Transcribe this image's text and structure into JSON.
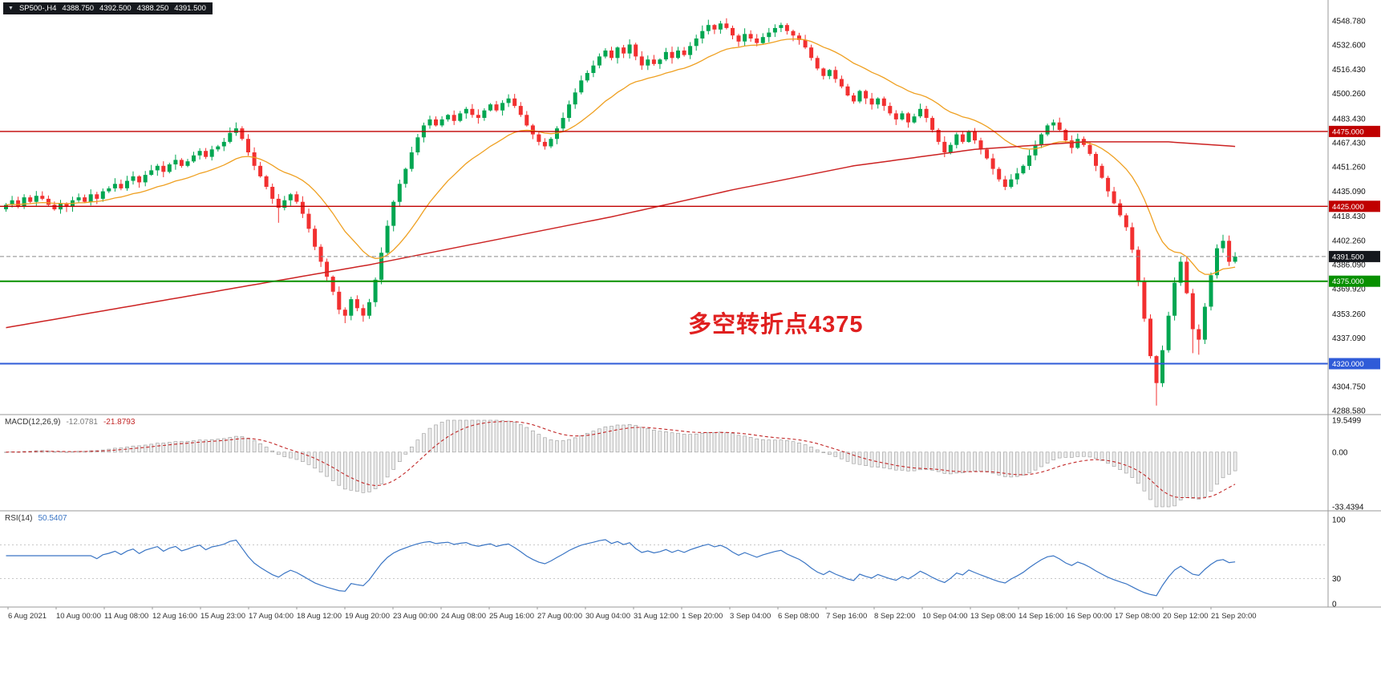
{
  "quote_bar": {
    "icon": "▼",
    "symbol": "SP500-,H4",
    "open": "4388.750",
    "high": "4392.500",
    "low": "4388.250",
    "close": "4391.500"
  },
  "chart_data": {
    "type": "candlestick",
    "symbol": "SP500-",
    "timeframe": "H4",
    "quote": {
      "open": 4388.75,
      "high": 4392.5,
      "low": 4388.25,
      "close": 4391.5
    },
    "style": {
      "up": "#00a651",
      "down": "#f23030"
    },
    "price_axis": {
      "min": 4286,
      "max": 4552,
      "ticks": [
        "4548.780",
        "4532.600",
        "4516.430",
        "4500.260",
        "4483.430",
        "4467.430",
        "4451.260",
        "4435.090",
        "4418.430",
        "4402.260",
        "4386.090",
        "4369.920",
        "4353.260",
        "4337.090",
        "4304.750",
        "4288.580"
      ]
    },
    "hlines": [
      {
        "value": 4475.0,
        "label": "4475.000",
        "color": "#c00000",
        "width": 1.4
      },
      {
        "value": 4425.0,
        "label": "4425.000",
        "color": "#c00000",
        "width": 1.4
      },
      {
        "value": 4375.0,
        "label": "4375.000",
        "color": "#089000",
        "width": 2
      },
      {
        "value": 4320.0,
        "label": "4320.000",
        "color": "#2f5bd8",
        "width": 2
      }
    ],
    "current_price": {
      "value": 4391.5,
      "label": "4391.500",
      "line_color": "#8a8a8a",
      "badge_color": "#15181d"
    },
    "price_badges": [
      {
        "value": 4475.0,
        "label": "4475.000",
        "color": "#c00000"
      },
      {
        "value": 4425.0,
        "label": "4425.000",
        "color": "#c00000"
      },
      {
        "value": 4391.5,
        "label": "4391.500",
        "color": "#15181d"
      },
      {
        "value": 4375.0,
        "label": "4375.000",
        "color": "#089000"
      },
      {
        "value": 4320.0,
        "label": "4320.000",
        "color": "#2f5bd8"
      }
    ],
    "closes": [
      4426,
      4429,
      4425,
      4431,
      4428,
      4432,
      4430,
      4426,
      4423,
      4427,
      4425,
      4429,
      4431,
      4428,
      4433,
      4430,
      4435,
      4437,
      4440,
      4437,
      4442,
      4445,
      4441,
      4446,
      4449,
      4452,
      4448,
      4453,
      4456,
      4452,
      4455,
      4459,
      4462,
      4458,
      4463,
      4465,
      4468,
      4474,
      4477,
      4470,
      4461,
      4452,
      4445,
      4438,
      4430,
      4424,
      4429,
      4433,
      4428,
      4420,
      4410,
      4398,
      4388,
      4378,
      4368,
      4356,
      4352,
      4363,
      4357,
      4352,
      4361,
      4376,
      4394,
      4412,
      4428,
      4440,
      4450,
      4461,
      4471,
      4479,
      4483,
      4479,
      4483,
      4486,
      4482,
      4487,
      4490,
      4486,
      4484,
      4489,
      4493,
      4489,
      4494,
      4497,
      4492,
      4486,
      4479,
      4473,
      4468,
      4465,
      4470,
      4477,
      4484,
      4493,
      4501,
      4509,
      4514,
      4519,
      4525,
      4529,
      4524,
      4531,
      4527,
      4533,
      4525,
      4519,
      4523,
      4520,
      4523,
      4528,
      4524,
      4529,
      4526,
      4532,
      4537,
      4542,
      4546,
      4543,
      4547,
      4544,
      4539,
      4535,
      4540,
      4537,
      4534,
      4538,
      4541,
      4544,
      4546,
      4542,
      4539,
      4536,
      4531,
      4524,
      4517,
      4512,
      4516,
      4510,
      4505,
      4499,
      4495,
      4502,
      4497,
      4493,
      4497,
      4492,
      4487,
      4483,
      4487,
      4481,
      4485,
      4490,
      4484,
      4476,
      4468,
      4461,
      4466,
      4473,
      4468,
      4475,
      4469,
      4463,
      4457,
      4450,
      4443,
      4438,
      4443,
      4447,
      4452,
      4459,
      4466,
      4473,
      4479,
      4481,
      4476,
      4469,
      4464,
      4470,
      4466,
      4460,
      4452,
      4444,
      4435,
      4427,
      4419,
      4411,
      4396,
      4375,
      4350,
      4325,
      4307,
      4329,
      4352,
      4374,
      4388,
      4367,
      4343,
      4336,
      4358,
      4379,
      4397,
      4402,
      4388,
      4391.5
    ],
    "wick_overrides": {
      "high": {
        "38": 4481,
        "118": 4548.8,
        "201": 4406
      },
      "low": {
        "45": 4414,
        "56": 4347,
        "59": 4348,
        "190": 4292,
        "196": 4327,
        "197": 4326
      }
    },
    "ma_fast": {
      "period": 20,
      "color": "#efa021"
    },
    "ma_slow": {
      "color": "#cc2222",
      "points": [
        [
          0,
          4344
        ],
        [
          20,
          4358
        ],
        [
          40,
          4372
        ],
        [
          60,
          4386
        ],
        [
          80,
          4402
        ],
        [
          100,
          4418
        ],
        [
          120,
          4436
        ],
        [
          140,
          4452
        ],
        [
          160,
          4463
        ],
        [
          178,
          4468
        ],
        [
          192,
          4468
        ],
        [
          203,
          4465
        ]
      ]
    },
    "annotation": {
      "text": "多空转折点4375",
      "color": "#e02020"
    },
    "x_labels": [
      "6 Aug 2021",
      "10 Aug 00:00",
      "11 Aug 08:00",
      "12 Aug 16:00",
      "15 Aug 23:00",
      "17 Aug 04:00",
      "18 Aug 12:00",
      "19 Aug 20:00",
      "23 Aug 00:00",
      "24 Aug 08:00",
      "25 Aug 16:00",
      "27 Aug 00:00",
      "30 Aug 04:00",
      "31 Aug 12:00",
      "1 Sep 20:00",
      "3 Sep 04:00",
      "6 Sep 08:00",
      "7 Sep 16:00",
      "8 Sep 22:00",
      "10 Sep 04:00",
      "13 Sep 08:00",
      "14 Sep 16:00",
      "16 Sep 00:00",
      "17 Sep 08:00",
      "20 Sep 12:00",
      "21 Sep 20:00"
    ],
    "macd": {
      "title": "MACD(12,26,9)",
      "value": "-12.0781",
      "signal_value": "-21.8793",
      "params": [
        12,
        26,
        9
      ],
      "axis": [
        "19.5499",
        "0.00",
        "-33.4394"
      ],
      "range": [
        19.5499,
        -33.4394
      ],
      "hist_fill": "#ececec",
      "hist_stroke": "#9a9a9a",
      "signal_color": "#c22727"
    },
    "rsi": {
      "title": "RSI(14)",
      "value": "50.5407",
      "period": 14,
      "axis": [
        "100",
        "30",
        "0"
      ],
      "levels": [
        70,
        30
      ],
      "color": "#3a75c4"
    }
  }
}
